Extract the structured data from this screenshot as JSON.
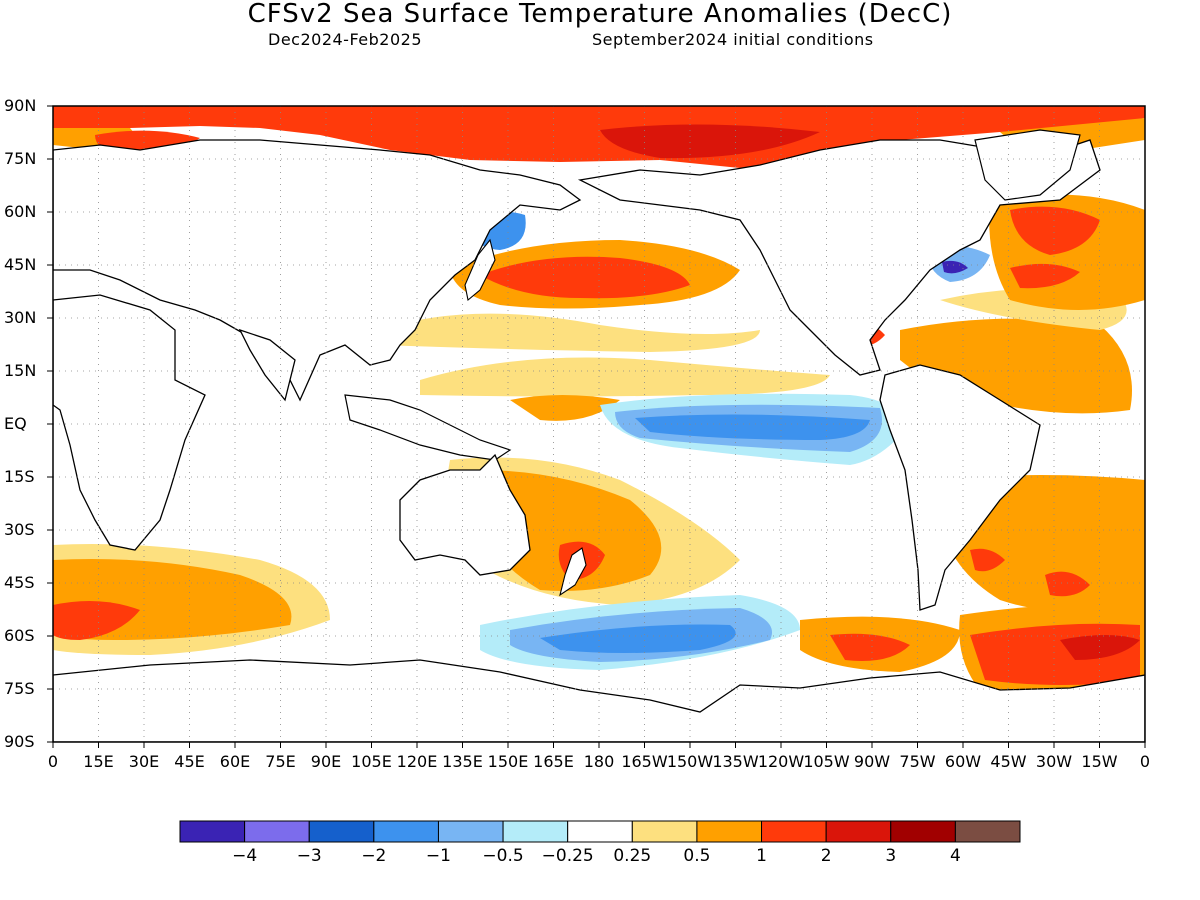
{
  "title": "CFSv2 Sea Surface Temperature Anomalies (DecC)",
  "subtitle_period": "Dec2024-Feb2025",
  "subtitle_init": "September2024 initial conditions",
  "lat_labels": [
    "90N",
    "75N",
    "60N",
    "45N",
    "30N",
    "15N",
    "EQ",
    "15S",
    "30S",
    "45S",
    "60S",
    "75S",
    "90S"
  ],
  "lon_labels": [
    "0",
    "15E",
    "30E",
    "45E",
    "60E",
    "75E",
    "90E",
    "105E",
    "120E",
    "135E",
    "150E",
    "165E",
    "180",
    "165W",
    "150W",
    "135W",
    "120W",
    "105W",
    "90W",
    "75W",
    "60W",
    "45W",
    "30W",
    "15W",
    "0"
  ],
  "colorbar": {
    "colors": [
      "#3a23b4",
      "#7c6cec",
      "#1560cc",
      "#3d92ee",
      "#78b5f3",
      "#b4ecf9",
      "#ffffff",
      "#fde07f",
      "#ffa000",
      "#ff3a0b",
      "#da150a",
      "#a10000",
      "#7b4d42"
    ],
    "labels": [
      "-4",
      "-3",
      "-2",
      "-1",
      "-0.5",
      "-0.25",
      "0.25",
      "0.5",
      "1",
      "2",
      "3",
      "4"
    ]
  },
  "map_fill": {
    "land": "#ffffff",
    "coastline": "#000000"
  }
}
